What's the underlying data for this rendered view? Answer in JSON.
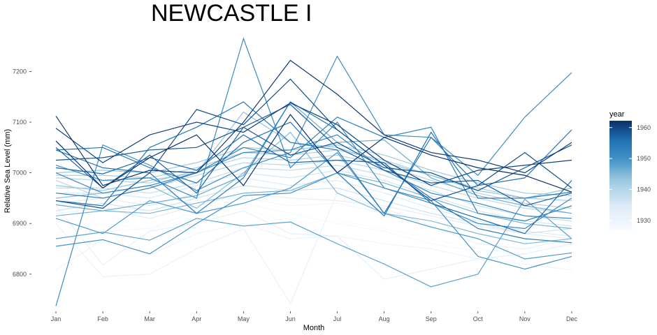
{
  "chart_data": {
    "type": "line",
    "title": "NEWCASTLE I",
    "xlabel": "Month",
    "ylabel": "Relative Sea Level (mm)",
    "categories": [
      "Jan",
      "Feb",
      "Mar",
      "Apr",
      "May",
      "Jun",
      "Jul",
      "Aug",
      "Sep",
      "Oct",
      "Nov",
      "Dec"
    ],
    "ylim": [
      6735,
      7275
    ],
    "yticks": [
      6800,
      6900,
      7000,
      7100,
      7200
    ],
    "ytick_labels": [
      "6800",
      "6900",
      "7000",
      "7100",
      "7200"
    ],
    "grid": false,
    "legend": {
      "title": "year",
      "position": "right",
      "type": "colorbar",
      "range": [
        1927,
        1962
      ],
      "ticks": [
        1930,
        1940,
        1950,
        1960
      ],
      "tick_labels": [
        "1930",
        "1940",
        "1950",
        "1960"
      ],
      "colors": [
        "#f7fbff",
        "#deebf7",
        "#9ecae1",
        "#4292c6",
        "#2171b5",
        "#08306b"
      ]
    },
    "series": [
      {
        "year": 1927,
        "values": [
          6880,
          6900,
          6890,
          6910,
          6930,
          6900,
          6905,
          6890,
          6870,
          6850,
          6840,
          6830
        ]
      },
      {
        "year": 1928,
        "values": [
          6905,
          6885,
          6890,
          6925,
          6940,
          6920,
          6900,
          6885,
          6860,
          6845,
          6850,
          6855
        ]
      },
      {
        "year": 1929,
        "values": [
          6920,
          6930,
          6925,
          6945,
          6950,
          6935,
          6940,
          6920,
          6905,
          6880,
          6870,
          6865
        ]
      },
      {
        "year": 1930,
        "values": [
          6808,
          6868,
          6838,
          6880,
          6900,
          6870,
          6875,
          6860,
          6850,
          6830,
          6820,
          6808
        ]
      },
      {
        "year": 1931,
        "values": [
          6900,
          6795,
          6800,
          6850,
          6890,
          6742,
          6960,
          6930,
          6895,
          6860,
          6850,
          6870
        ]
      },
      {
        "year": 1932,
        "values": [
          6935,
          6818,
          6885,
          6900,
          6925,
          6880,
          6875,
          6790,
          6810,
          6830,
          6840,
          6860
        ]
      },
      {
        "year": 1933,
        "values": [
          6950,
          6930,
          6910,
          6935,
          6960,
          6950,
          6945,
          6935,
          6915,
          6895,
          6880,
          6870
        ]
      },
      {
        "year": 1934,
        "values": [
          6940,
          6950,
          6935,
          6960,
          6990,
          6975,
          6985,
          6960,
          6930,
          6905,
          6885,
          6875
        ]
      },
      {
        "year": 1935,
        "values": [
          6960,
          6960,
          6950,
          6975,
          7000,
          6990,
          7005,
          6985,
          6955,
          6925,
          6905,
          6895
        ]
      },
      {
        "year": 1936,
        "values": [
          6925,
          6940,
          6925,
          6950,
          6975,
          6965,
          6970,
          6945,
          6920,
          6900,
          6880,
          6890
        ]
      },
      {
        "year": 1937,
        "values": [
          6970,
          6970,
          6960,
          6980,
          7010,
          7005,
          7015,
          6995,
          6965,
          6935,
          6915,
          6905
        ]
      },
      {
        "year": 1938,
        "values": [
          6985,
          6950,
          6970,
          6995,
          7020,
          7015,
          7025,
          7005,
          6975,
          6950,
          6930,
          6920
        ]
      },
      {
        "year": 1939,
        "values": [
          6990,
          6985,
          6980,
          7005,
          7030,
          7025,
          7035,
          7015,
          6985,
          6960,
          6940,
          6930
        ]
      },
      {
        "year": 1940,
        "values": [
          6995,
          6995,
          6990,
          7010,
          7040,
          7035,
          7045,
          7025,
          6995,
          6970,
          6950,
          6945
        ]
      },
      {
        "year": 1941,
        "values": [
          7000,
          7005,
          7000,
          7020,
          7050,
          7045,
          7055,
          7035,
          7005,
          6980,
          6960,
          6955
        ]
      },
      {
        "year": 1942,
        "values": [
          6975,
          6965,
          6985,
          7000,
          7120,
          7060,
          7050,
          7020,
          6995,
          6965,
          6950,
          6970
        ]
      },
      {
        "year": 1943,
        "values": [
          6950,
          6960,
          6975,
          6930,
          7000,
          7080,
          6960,
          6920,
          6905,
          6880,
          6860,
          6870
        ]
      },
      {
        "year": 1944,
        "values": [
          6915,
          6925,
          6920,
          6940,
          6960,
          6965,
          7000,
          6980,
          6950,
          6920,
          6900,
          6890
        ]
      },
      {
        "year": 1945,
        "values": [
          6937,
          6925,
          6940,
          6955,
          6995,
          7140,
          7060,
          7065,
          6990,
          6955,
          6935,
          6920
        ]
      },
      {
        "year": 1946,
        "values": [
          6870,
          6883,
          6867,
          6910,
          6895,
          6903,
          6860,
          6820,
          6775,
          6800,
          6948,
          6870
        ]
      },
      {
        "year": 1947,
        "values": [
          6910,
          6880,
          6945,
          6920,
          6940,
          6970,
          7040,
          6920,
          6893,
          6870,
          6830,
          6842
        ]
      },
      {
        "year": 1948,
        "values": [
          6855,
          6868,
          6840,
          6900,
          6955,
          6960,
          7000,
          6970,
          6945,
          6835,
          6810,
          6835
        ]
      },
      {
        "year": 1949,
        "values": [
          6737,
          7055,
          7015,
          6965,
          7010,
          7040,
          7230,
          7075,
          7070,
          6995,
          7110,
          7198
        ]
      },
      {
        "year": 1950,
        "values": [
          7015,
          6985,
          6990,
          6950,
          7265,
          7010,
          7100,
          6970,
          6940,
          6900,
          6890,
          6950
        ]
      },
      {
        "year": 1951,
        "values": [
          7000,
          6960,
          6975,
          7000,
          7040,
          7045,
          7075,
          7005,
          6960,
          6940,
          6915,
          6910
        ]
      },
      {
        "year": 1952,
        "values": [
          6960,
          6950,
          6970,
          7000,
          7050,
          7030,
          7110,
          7070,
          7090,
          6920,
          6905,
          6935
        ]
      },
      {
        "year": 1953,
        "values": [
          7045,
          7010,
          7000,
          6920,
          6990,
          7140,
          7085,
          7015,
          6950,
          6890,
          6870,
          6862
        ]
      },
      {
        "year": 1954,
        "values": [
          6945,
          6935,
          7050,
          7090,
          7140,
          7060,
          7045,
          6920,
          7070,
          6975,
          6990,
          7085
        ]
      },
      {
        "year": 1955,
        "values": [
          7045,
          7050,
          7010,
          6980,
          7060,
          7100,
          7000,
          6915,
          7080,
          6950,
          6950,
          6962
        ]
      },
      {
        "year": 1956,
        "values": [
          7010,
          6998,
          7030,
          7005,
          7075,
          7020,
          7025,
          7020,
          6940,
          6910,
          6880,
          6985
        ]
      },
      {
        "year": 1957,
        "values": [
          7050,
          6970,
          7035,
          6960,
          7090,
          7135,
          7050,
          7005,
          6980,
          6985,
          6935,
          6960
        ]
      },
      {
        "year": 1958,
        "values": [
          7025,
          7030,
          7045,
          7050,
          7090,
          7035,
          7060,
          7010,
          7000,
          6965,
          7010,
          7055
        ]
      },
      {
        "year": 1959,
        "values": [
          6945,
          6930,
          7000,
          7125,
          7095,
          7185,
          7085,
          7015,
          6945,
          6975,
          7040,
          6970
        ]
      },
      {
        "year": 1960,
        "values": [
          7088,
          7020,
          7075,
          7100,
          7080,
          7138,
          7095,
          7025,
          6975,
          7005,
          7015,
          7025
        ]
      },
      {
        "year": 1961,
        "values": [
          7112,
          6975,
          7005,
          7000,
          7100,
          7222,
          7155,
          7075,
          7040,
          7025,
          7000,
          7060
        ]
      },
      {
        "year": 1962,
        "values": [
          7063,
          6970,
          7030,
          7075,
          6975,
          7115,
          7000,
          7070,
          7035,
          7010,
          6995,
          6962
        ]
      }
    ]
  }
}
